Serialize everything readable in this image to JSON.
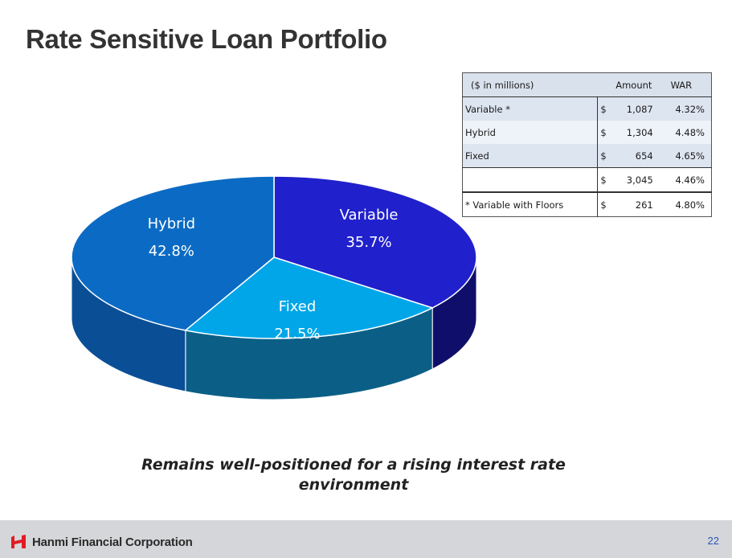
{
  "title": "Rate Sensitive Loan Portfolio",
  "table": {
    "header": {
      "label": "($ in millions)",
      "amount": "Amount",
      "war": "WAR"
    },
    "rows": [
      {
        "label": "Variable *",
        "currency": "$",
        "amount": "1,087",
        "war": "4.32%"
      },
      {
        "label": "Hybrid",
        "currency": "$",
        "amount": "1,304",
        "war": "4.48%"
      },
      {
        "label": "Fixed",
        "currency": "$",
        "amount": "654",
        "war": "4.65%"
      },
      {
        "label": "",
        "currency": "$",
        "amount": "3,045",
        "war": "4.46%"
      },
      {
        "label": "* Variable with Floors",
        "currency": "$",
        "amount": "261",
        "war": "4.80%"
      }
    ]
  },
  "chart_data": {
    "type": "pie",
    "slices": [
      {
        "label": "Variable",
        "value": 35.7,
        "value_label": "35.7%",
        "color": "#2020cc",
        "side_color": "#0f0f6b"
      },
      {
        "label": "Fixed",
        "value": 21.5,
        "value_label": "21.5%",
        "color": "#00a6e8",
        "side_color": "#0b5f86"
      },
      {
        "label": "Hybrid",
        "value": 42.8,
        "value_label": "42.8%",
        "color": "#0b6bc4",
        "side_color": "#0a4f96"
      }
    ]
  },
  "caption": "Remains well-positioned for a rising interest rate environment",
  "footer": {
    "company": "Hanmi Financial Corporation",
    "page_number": "22",
    "logo_color": "#e21b23"
  }
}
